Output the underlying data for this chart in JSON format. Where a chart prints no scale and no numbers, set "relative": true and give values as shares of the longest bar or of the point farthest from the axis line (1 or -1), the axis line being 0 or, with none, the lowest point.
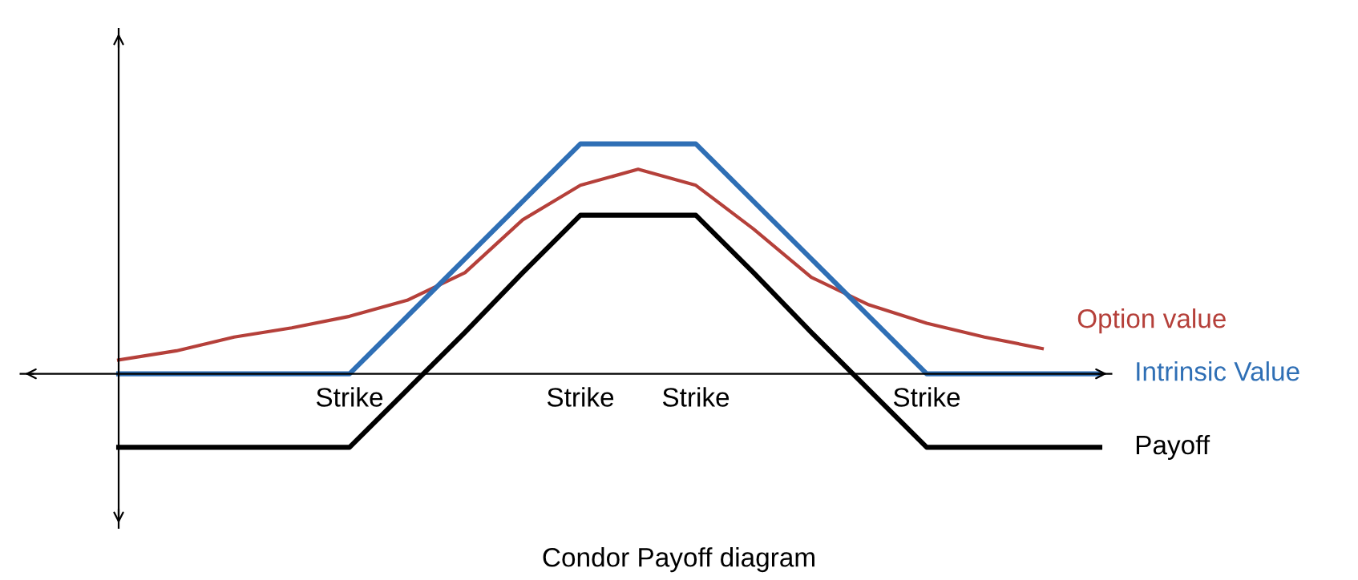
{
  "chart_data": {
    "type": "line",
    "title": "Condor Payoff diagram",
    "relative": true,
    "categories": [
      null,
      null,
      null,
      null,
      "Strike",
      null,
      null,
      null,
      "Strike",
      null,
      "Strike",
      null,
      null,
      null,
      "Strike",
      null,
      null,
      null
    ],
    "series": [
      {
        "name": "Option value",
        "color": "#b5403a",
        "values": [
          0.06,
          0.1,
          0.16,
          0.2,
          0.25,
          0.32,
          0.44,
          0.67,
          0.82,
          0.89,
          0.82,
          0.63,
          0.42,
          0.3,
          0.22,
          0.16,
          0.11,
          null
        ]
      },
      {
        "name": "Intrinsic Value",
        "color": "#2f6fb5",
        "values": [
          0,
          0,
          0,
          0,
          0,
          0.25,
          0.5,
          0.75,
          1,
          1,
          1,
          0.75,
          0.5,
          0.25,
          0,
          0,
          0,
          0
        ]
      },
      {
        "name": "Payoff",
        "color": "#000000",
        "values": [
          -0.32,
          -0.32,
          -0.32,
          -0.32,
          -0.32,
          -0.07,
          0.18,
          0.44,
          0.69,
          0.69,
          0.69,
          0.44,
          0.18,
          -0.07,
          -0.32,
          -0.32,
          -0.32,
          -0.32
        ]
      }
    ],
    "line_style": "solid",
    "marker": "none"
  }
}
